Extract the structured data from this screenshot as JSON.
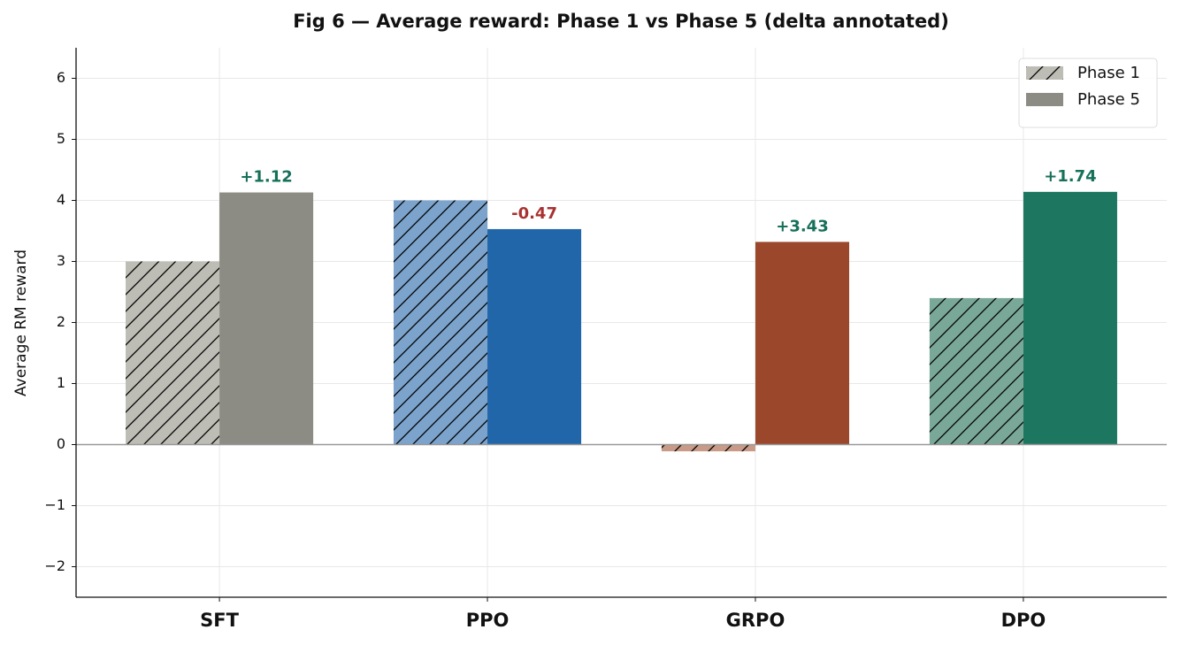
{
  "chart_data": {
    "type": "bar",
    "title": "Fig 6 — Average reward: Phase 1 vs Phase 5 (delta annotated)",
    "y_label": "Average RM reward",
    "categories": [
      "SFT",
      "PPO",
      "GRPO",
      "DPO"
    ],
    "series": [
      {
        "name": "Phase 1",
        "color": "#bdbdb5",
        "hatch": true,
        "colors": [
          "#bdbdb5",
          "#7ba3cc",
          "#c99a88",
          "#7aa898"
        ],
        "values": [
          3.0,
          4.0,
          -0.11,
          2.4
        ]
      },
      {
        "name": "Phase 5",
        "color": "#8c8c84",
        "hatch": false,
        "colors": [
          "#8c8c84",
          "#2166a8",
          "#9a472b",
          "#1c7660"
        ],
        "values": [
          4.13,
          3.53,
          3.32,
          4.14
        ]
      }
    ],
    "deltas": [
      1.12,
      -0.47,
      3.43,
      1.74
    ],
    "delta_labels": [
      "+1.12",
      "-0.47",
      "+3.43",
      "+1.74"
    ],
    "positive_color": "#17705a",
    "negative_color": "#a83232",
    "ylim": [
      -2.5,
      6.5
    ],
    "yticks": [
      {
        "value": -2,
        "label": "−2"
      },
      {
        "value": -1,
        "label": "−1"
      },
      0,
      1,
      2,
      3,
      4,
      5,
      6
    ],
    "grid": true,
    "legend": "upper right"
  }
}
